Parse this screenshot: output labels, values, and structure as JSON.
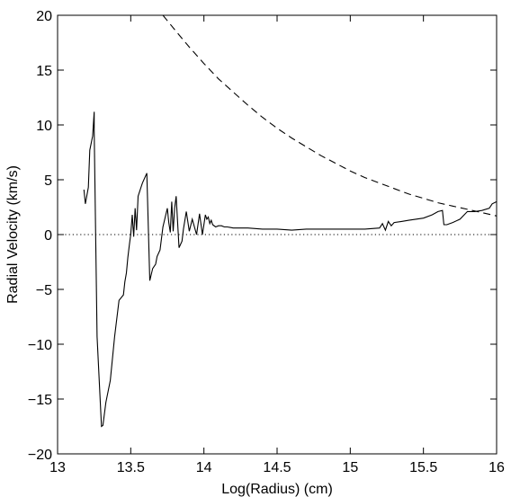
{
  "chart_data": {
    "type": "line",
    "title": "",
    "xlabel": "Log(Radius) (cm)",
    "ylabel": "Radial Velocity (km/s)",
    "xlim": [
      13,
      16
    ],
    "ylim": [
      -20,
      20
    ],
    "x_ticks": [
      13,
      13.5,
      14,
      14.5,
      15,
      15.5,
      16
    ],
    "x_tick_labels": [
      "13",
      "13.5",
      "14",
      "14.5",
      "15",
      "15.5",
      "16"
    ],
    "y_ticks": [
      -20,
      -15,
      -10,
      -5,
      0,
      5,
      10,
      15,
      20
    ],
    "y_tick_labels": [
      "−20",
      "−15",
      "−10",
      "−5",
      "0",
      "5",
      "10",
      "15",
      "20"
    ],
    "grid": false,
    "legend": "none",
    "series": [
      {
        "style": "solid",
        "color": "#000000",
        "x": [
          13.18,
          13.19,
          13.21,
          13.22,
          13.24,
          13.25,
          13.25,
          13.27,
          13.3,
          13.31,
          13.33,
          13.36,
          13.39,
          13.42,
          13.45,
          13.46,
          13.47,
          13.48,
          13.49,
          13.5,
          13.51,
          13.52,
          13.53,
          13.54,
          13.55,
          13.56,
          13.57,
          13.58,
          13.61,
          13.63,
          13.65,
          13.67,
          13.68,
          13.7,
          13.72,
          13.75,
          13.76,
          13.77,
          13.78,
          13.79,
          13.8,
          13.81,
          13.83,
          13.85,
          13.86,
          13.88,
          13.9,
          13.92,
          13.95,
          13.97,
          13.99,
          14.01,
          14.02,
          14.03,
          14.04,
          14.05,
          14.06,
          14.08,
          14.1,
          14.12,
          14.14,
          14.16,
          14.2,
          14.3,
          14.4,
          14.5,
          14.6,
          14.7,
          14.8,
          14.9,
          15.0,
          15.1,
          15.2,
          15.22,
          15.24,
          15.26,
          15.28,
          15.3,
          15.35,
          15.4,
          15.5,
          15.56,
          15.6,
          15.63,
          15.64,
          15.66,
          15.7,
          15.75,
          15.8,
          15.85,
          15.9,
          15.95,
          15.97,
          16.0
        ],
        "y": [
          4.1,
          2.8,
          4.3,
          7.7,
          9.0,
          11.2,
          9.5,
          -9.3,
          -17.5,
          -17.4,
          -15.3,
          -13.3,
          -9.3,
          -6.0,
          -5.5,
          -4.3,
          -3.5,
          -2.1,
          -1.0,
          0.0,
          1.8,
          -0.2,
          2.4,
          0.4,
          3.5,
          3.9,
          4.3,
          4.7,
          5.6,
          -4.2,
          -3.1,
          -2.7,
          -2.0,
          -1.4,
          0.7,
          2.4,
          1.1,
          0.2,
          3.0,
          0.3,
          2.4,
          3.5,
          -1.2,
          -0.6,
          0.5,
          2.1,
          0.3,
          1.4,
          0.0,
          1.9,
          0.0,
          1.8,
          1.4,
          1.6,
          1.0,
          1.3,
          0.9,
          0.7,
          0.8,
          0.8,
          0.7,
          0.7,
          0.6,
          0.6,
          0.5,
          0.5,
          0.4,
          0.5,
          0.5,
          0.5,
          0.5,
          0.5,
          0.6,
          1.0,
          0.4,
          1.2,
          0.8,
          1.1,
          1.2,
          1.3,
          1.5,
          1.8,
          2.1,
          2.2,
          0.9,
          0.9,
          1.1,
          1.4,
          2.1,
          2.1,
          2.2,
          2.4,
          2.8,
          3.0
        ]
      },
      {
        "style": "dashed",
        "color": "#000000",
        "x": [
          13.72,
          13.8,
          13.9,
          14.0,
          14.1,
          14.2,
          14.3,
          14.4,
          14.5,
          14.6,
          14.7,
          14.8,
          14.9,
          15.0,
          15.1,
          15.2,
          15.3,
          15.4,
          15.5,
          15.6,
          15.7,
          15.8,
          15.9,
          16.0
        ],
        "y": [
          20.0,
          18.7,
          17.1,
          15.6,
          14.2,
          13.0,
          11.8,
          10.7,
          9.7,
          8.8,
          8.0,
          7.2,
          6.5,
          5.8,
          5.2,
          4.7,
          4.2,
          3.7,
          3.3,
          2.9,
          2.6,
          2.3,
          2.0,
          1.7
        ]
      },
      {
        "style": "dotted",
        "color": "#000000",
        "x": [
          13,
          16
        ],
        "y": [
          0,
          0
        ]
      }
    ]
  }
}
